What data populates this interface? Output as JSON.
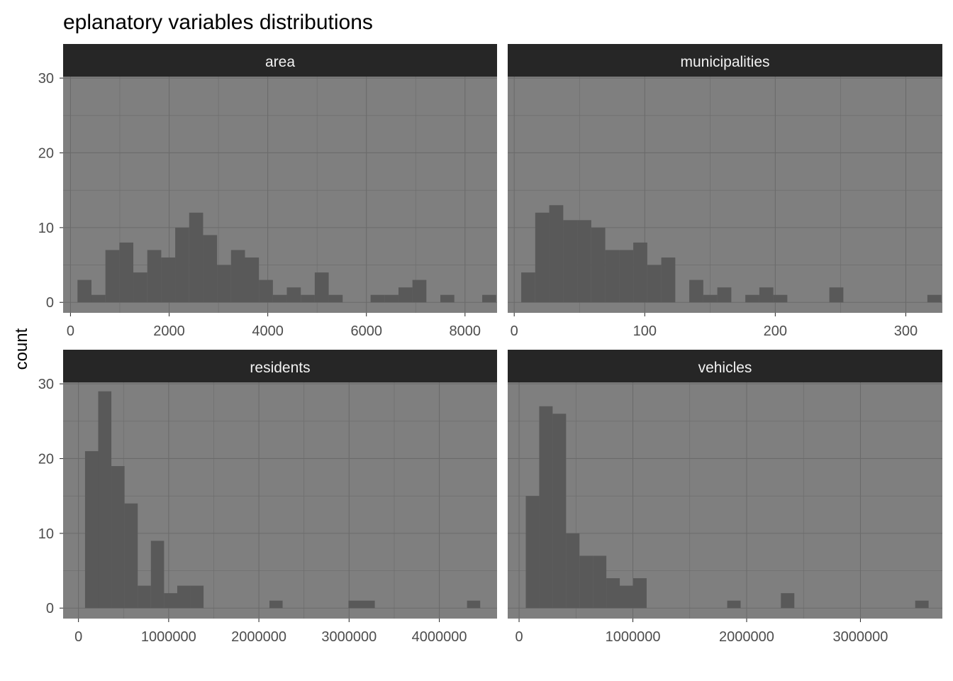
{
  "title": "eplanatory variables distributions",
  "ylabel": "count",
  "colors": {
    "panel_bg": "#7f7f7f",
    "grid": "#6b6b6b",
    "bar": "#595959",
    "strip_bg": "#262626",
    "strip_text": "#f2f2f2",
    "tick_text": "#4d4d4d"
  },
  "chart_data": [
    {
      "type": "bar",
      "facet": "area",
      "xlim": [
        -150,
        8650
      ],
      "ylim": [
        -1.4,
        30.2
      ],
      "xticks": [
        0,
        2000,
        4000,
        6000,
        8000
      ],
      "xtick_labels": [
        "0",
        "2000",
        "4000",
        "6000",
        "8000"
      ],
      "yticks": [
        0,
        10,
        20,
        30
      ],
      "ytick_labels": [
        "0",
        "10",
        "20",
        "30"
      ],
      "bin_width": 283,
      "bin_starts": [
        142,
        425,
        708,
        991,
        1274,
        1557,
        1840,
        2123,
        2406,
        2689,
        2972,
        3255,
        3538,
        3821,
        4104,
        4387,
        4670,
        4953,
        5236,
        5519,
        5802,
        6085,
        6368,
        6651,
        6934,
        7217,
        7500,
        7783,
        8066,
        8349
      ],
      "values": [
        3,
        1,
        7,
        8,
        4,
        7,
        6,
        10,
        12,
        9,
        5,
        7,
        6,
        3,
        1,
        2,
        1,
        4,
        1,
        0,
        0,
        1,
        1,
        2,
        3,
        0,
        1,
        0,
        0,
        1
      ]
    },
    {
      "type": "bar",
      "facet": "municipalities",
      "xlim": [
        -5,
        328
      ],
      "ylim": [
        -1.4,
        30.2
      ],
      "xticks": [
        0,
        100,
        200,
        300
      ],
      "xtick_labels": [
        "0",
        "100",
        "200",
        "300"
      ],
      "yticks": [
        0,
        10,
        20,
        30
      ],
      "ytick_labels": [
        "0",
        "10",
        "20",
        "30"
      ],
      "bin_width": 10.73,
      "bin_starts": [
        5.36,
        16.09,
        26.82,
        37.55,
        48.28,
        59.01,
        69.74,
        80.47,
        91.2,
        101.93,
        112.66,
        123.39,
        134.12,
        144.85,
        155.58,
        166.31,
        177.04,
        187.77,
        198.5,
        209.23,
        219.96,
        230.69,
        241.42,
        252.15,
        262.88,
        273.61,
        284.34,
        295.07,
        305.8,
        316.53
      ],
      "values": [
        4,
        12,
        13,
        11,
        11,
        10,
        7,
        7,
        8,
        5,
        6,
        0,
        3,
        1,
        2,
        0,
        1,
        2,
        1,
        0,
        0,
        0,
        2,
        0,
        0,
        0,
        0,
        0,
        0,
        1
      ]
    },
    {
      "type": "bar",
      "facet": "residents",
      "xlim": [
        -170000,
        4640000
      ],
      "ylim": [
        -1.4,
        30.2
      ],
      "xticks": [
        0,
        1000000,
        2000000,
        3000000,
        4000000
      ],
      "xtick_labels": [
        "0",
        "1000000",
        "2000000",
        "3000000",
        "4000000"
      ],
      "yticks": [
        0,
        10,
        20,
        30
      ],
      "ytick_labels": [
        "0",
        "10",
        "20",
        "30"
      ],
      "bin_width": 146000,
      "bin_starts": [
        73000,
        219000,
        365000,
        511000,
        657000,
        803000,
        949000,
        1095000,
        1241000,
        1387000,
        1533000,
        1679000,
        1825000,
        1971000,
        2117000,
        2263000,
        2409000,
        2555000,
        2701000,
        2847000,
        2993000,
        3139000,
        3285000,
        3431000,
        3577000,
        3723000,
        3869000,
        4015000,
        4161000,
        4307000
      ],
      "values": [
        21,
        29,
        19,
        14,
        3,
        9,
        2,
        3,
        3,
        0,
        0,
        0,
        0,
        0,
        1,
        0,
        0,
        0,
        0,
        0,
        1,
        1,
        0,
        0,
        0,
        0,
        0,
        0,
        0,
        1
      ]
    },
    {
      "type": "bar",
      "facet": "vehicles",
      "xlim": [
        -100000,
        3720000
      ],
      "ylim": [
        -1.4,
        30.2
      ],
      "xticks": [
        0,
        1000000,
        2000000,
        3000000
      ],
      "xtick_labels": [
        "0",
        "1000000",
        "2000000",
        "3000000"
      ],
      "yticks": [
        0,
        10,
        20,
        30
      ],
      "ytick_labels": [
        "0",
        "10",
        "20",
        "30"
      ],
      "bin_width": 118000,
      "bin_starts": [
        59000,
        177000,
        295000,
        413000,
        531000,
        649000,
        767000,
        885000,
        1003000,
        1121000,
        1239000,
        1357000,
        1475000,
        1593000,
        1711000,
        1829000,
        1947000,
        2065000,
        2183000,
        2301000,
        2419000,
        2537000,
        2655000,
        2773000,
        2891000,
        3009000,
        3127000,
        3245000,
        3363000,
        3481000
      ],
      "values": [
        15,
        27,
        26,
        10,
        7,
        7,
        4,
        3,
        4,
        0,
        0,
        0,
        0,
        0,
        0,
        1,
        0,
        0,
        0,
        2,
        0,
        0,
        0,
        0,
        0,
        0,
        0,
        0,
        0,
        1
      ]
    }
  ]
}
